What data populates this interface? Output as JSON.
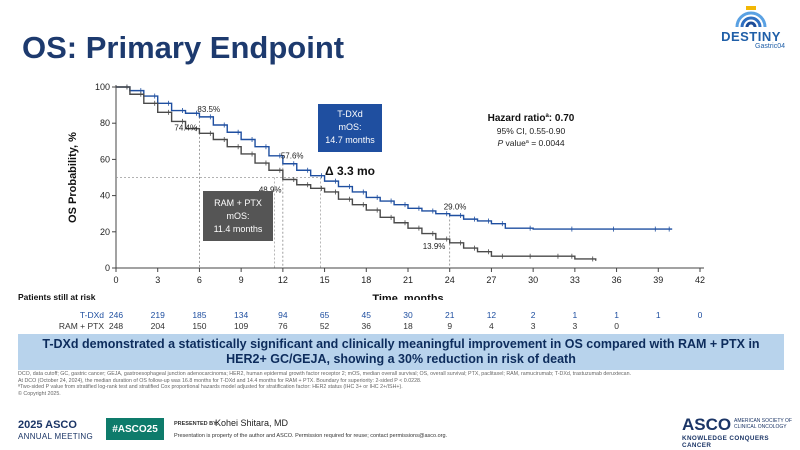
{
  "slide": {
    "title": "OS: Primary Endpoint"
  },
  "logo": {
    "word": "DESTINY",
    "sub": "Gastric04"
  },
  "chart_data": {
    "type": "line",
    "title": "",
    "xlabel": "Time, months",
    "ylabel": "OS Probability, %",
    "xlim": [
      0,
      42
    ],
    "ylim": [
      0,
      100
    ],
    "x_ticks": [
      0,
      3,
      6,
      9,
      12,
      15,
      18,
      21,
      24,
      27,
      30,
      33,
      36,
      39,
      42
    ],
    "y_ticks": [
      0,
      20,
      40,
      60,
      80,
      100
    ],
    "series": [
      {
        "name": "T-DXd",
        "color": "#1f4fa0",
        "x": [
          0,
          1,
          2,
          3,
          4,
          5,
          6,
          7,
          8,
          9,
          10,
          11,
          12,
          13,
          14,
          15,
          16,
          17,
          18,
          19,
          20,
          21,
          22,
          23,
          24,
          25,
          26,
          27,
          28,
          30,
          33,
          36,
          39,
          40
        ],
        "y": [
          100,
          98,
          95,
          91,
          87,
          85.5,
          83.5,
          79,
          75,
          71,
          67,
          62,
          57.6,
          54,
          51,
          48,
          45,
          42,
          39,
          37,
          35,
          33,
          31.5,
          30,
          29,
          27,
          26,
          24.5,
          22,
          21.5,
          21.5,
          21.5,
          21.5,
          21.5
        ]
      },
      {
        "name": "RAM + PTX",
        "color": "#4a4a4a",
        "x": [
          0,
          1,
          2,
          3,
          4,
          5,
          6,
          7,
          8,
          9,
          10,
          11,
          12,
          13,
          14,
          15,
          16,
          17,
          18,
          19,
          20,
          21,
          22,
          23,
          24,
          25,
          26,
          27,
          28,
          30,
          32,
          33,
          34.5
        ],
        "y": [
          100,
          96,
          91,
          86,
          81,
          77,
          74.4,
          71,
          67,
          63,
          58,
          54,
          48.9,
          46,
          44,
          42,
          38,
          35,
          32,
          28,
          25,
          22,
          19,
          16,
          13.9,
          11,
          9,
          6.5,
          6.5,
          6.5,
          6.5,
          5,
          4
        ]
      }
    ],
    "annotations": [
      {
        "text": "83.5%",
        "series": "T-DXd",
        "x": 6,
        "y": 83.5
      },
      {
        "text": "74.4%",
        "series": "RAM + PTX",
        "x": 6,
        "y": 74.4
      },
      {
        "text": "57.6%",
        "series": "T-DXd",
        "x": 12,
        "y": 57.6
      },
      {
        "text": "48.9%",
        "series": "RAM + PTX",
        "x": 12,
        "y": 48.9
      },
      {
        "text": "29.0%",
        "series": "T-DXd",
        "x": 24,
        "y": 29.0
      },
      {
        "text": "13.9%",
        "series": "RAM + PTX",
        "x": 24,
        "y": 13.9
      }
    ],
    "median_lines": [
      {
        "series": "T-DXd",
        "x": 14.7
      },
      {
        "series": "RAM + PTX",
        "x": 11.4
      }
    ],
    "reference_y": 50,
    "callouts": {
      "tdxd_box": {
        "name": "T-DXd",
        "label": "mOS:",
        "value": "14.7 months"
      },
      "ram_box": {
        "name": "RAM + PTX",
        "label": "mOS:",
        "value": "11.4 months"
      },
      "delta": "Δ 3.3 mo",
      "hr_title": "Hazard ratio",
      "hr_sup": "a",
      "hr_value": ": 0.70",
      "ci": "95% CI, 0.55-0.90",
      "p_prefix": "P",
      "p_mid": " value",
      "p_sup": "a",
      "p_value": " = 0.0044"
    },
    "at_risk": {
      "header": "Patients still at risk",
      "rows": [
        {
          "label": "T-DXd",
          "values": [
            "246",
            "219",
            "185",
            "134",
            "94",
            "65",
            "45",
            "30",
            "21",
            "12",
            "2",
            "1",
            "1",
            "1",
            "0"
          ]
        },
        {
          "label": "RAM + PTX",
          "values": [
            "248",
            "204",
            "150",
            "109",
            "76",
            "52",
            "36",
            "18",
            "9",
            "4",
            "3",
            "3",
            "0"
          ]
        }
      ]
    }
  },
  "banner": {
    "text": "T-DXd demonstrated a statistically significant and clinically meaningful improvement in OS compared with RAM + PTX in HER2+ GC/GEJA, showing a 30% reduction in risk of death"
  },
  "footnotes": [
    "DCO, data cutoff; GC, gastric cancer; GEJA, gastroesophageal junction adenocarcinoma; HER2, human epidermal growth factor receptor 2; mOS, median overall survival; OS, overall survival; PTX, paclitaxel; RAM, ramucirumab; T-DXd, trastuzumab deruxtecan.",
    "At DCO (October 24, 2024), the median duration of OS follow-up was 16.8 months for T-DXd and 14.4 months for RAM + PTX. Boundary for superiority: 2-sided P < 0.0228.",
    "ªTwo-sided P value from stratified log-rank test and stratified Cox proportional hazards model adjusted for stratification factor: HER2 status (IHC 3+ or IHC 2+/ISH+).",
    "© Copyright 2025."
  ],
  "footer": {
    "year": "2025 ASCO",
    "meeting": "ANNUAL MEETING",
    "hashtag": "#ASCO25",
    "presented_by": "PRESENTED BY:",
    "presenter": "Kohei Shitara, MD",
    "note": "Presentation is property of the author and ASCO. Permission required for reuse; contact permissions@asco.org.",
    "asco": "ASCO",
    "asco_side": "AMERICAN SOCIETY OF CLINICAL ONCOLOGY",
    "tagline": "KNOWLEDGE CONQUERS CANCER"
  }
}
